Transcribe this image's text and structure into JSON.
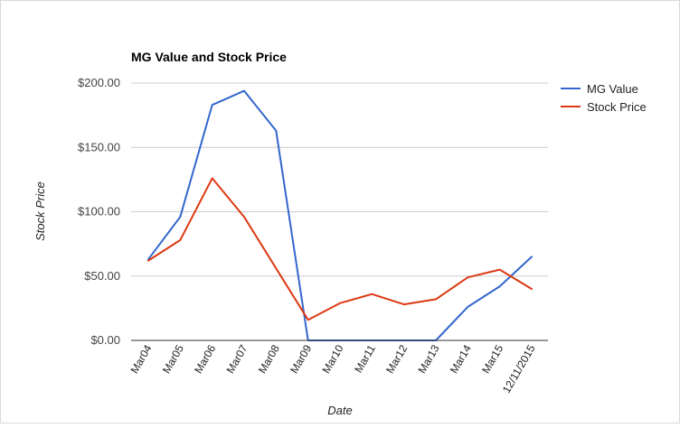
{
  "chart_data": {
    "type": "line",
    "title": "MG Value and Stock Price",
    "xlabel": "Date",
    "ylabel": "Stock Price",
    "categories": [
      "Mar04",
      "Mar05",
      "Mar06",
      "Mar07",
      "Mar08",
      "Mar09",
      "Mar10",
      "Mar11",
      "Mar12",
      "Mar13",
      "Mar14",
      "Mar15",
      "12/11/2015"
    ],
    "yticks": [
      "$0.00",
      "$50.00",
      "$100.00",
      "$150.00",
      "$200.00"
    ],
    "ylim": [
      0,
      200
    ],
    "grid": true,
    "legend_position": "right",
    "series": [
      {
        "name": "MG Value",
        "color": "#3366cc",
        "values": [
          63,
          96,
          183,
          194,
          163,
          0,
          0,
          0,
          0,
          0,
          26,
          42,
          65
        ]
      },
      {
        "name": "Stock Price",
        "color": "#dc3912",
        "values": [
          62,
          78,
          126,
          96,
          56,
          16,
          29,
          36,
          28,
          32,
          49,
          55,
          40
        ]
      }
    ]
  }
}
